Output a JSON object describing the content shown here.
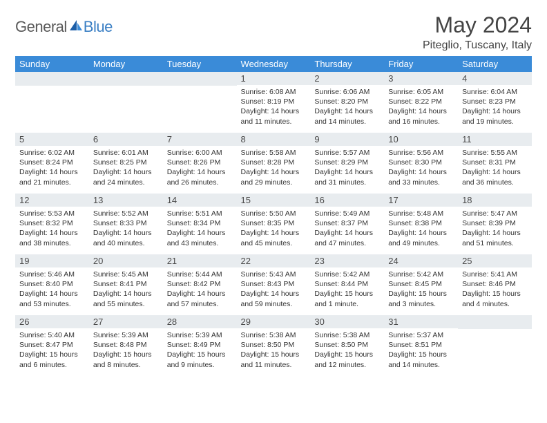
{
  "logo": {
    "text_general": "General",
    "text_blue": "Blue"
  },
  "header": {
    "month_title": "May 2024",
    "location": "Piteglio, Tuscany, Italy"
  },
  "styling": {
    "header_bg": "#3a8bd8",
    "header_fg": "#ffffff",
    "daynum_bg": "#e8ecef",
    "daynum_fg": "#4a4a4a",
    "body_fg": "#333333",
    "page_bg": "#ffffff",
    "font_family": "Arial, Helvetica, sans-serif",
    "daynum_fontsize": 13,
    "body_fontsize": 10.5,
    "header_fontsize": 13,
    "title_fontsize": 32,
    "location_fontsize": 16,
    "logo_general_color": "#5a5a5a",
    "logo_blue_color": "#3a7fc4"
  },
  "columns": [
    "Sunday",
    "Monday",
    "Tuesday",
    "Wednesday",
    "Thursday",
    "Friday",
    "Saturday"
  ],
  "weeks": [
    [
      {
        "empty": true
      },
      {
        "empty": true
      },
      {
        "empty": true
      },
      {
        "n": "1",
        "sunrise": "6:08 AM",
        "sunset": "8:19 PM",
        "daylight": "14 hours and 11 minutes."
      },
      {
        "n": "2",
        "sunrise": "6:06 AM",
        "sunset": "8:20 PM",
        "daylight": "14 hours and 14 minutes."
      },
      {
        "n": "3",
        "sunrise": "6:05 AM",
        "sunset": "8:22 PM",
        "daylight": "14 hours and 16 minutes."
      },
      {
        "n": "4",
        "sunrise": "6:04 AM",
        "sunset": "8:23 PM",
        "daylight": "14 hours and 19 minutes."
      }
    ],
    [
      {
        "n": "5",
        "sunrise": "6:02 AM",
        "sunset": "8:24 PM",
        "daylight": "14 hours and 21 minutes."
      },
      {
        "n": "6",
        "sunrise": "6:01 AM",
        "sunset": "8:25 PM",
        "daylight": "14 hours and 24 minutes."
      },
      {
        "n": "7",
        "sunrise": "6:00 AM",
        "sunset": "8:26 PM",
        "daylight": "14 hours and 26 minutes."
      },
      {
        "n": "8",
        "sunrise": "5:58 AM",
        "sunset": "8:28 PM",
        "daylight": "14 hours and 29 minutes."
      },
      {
        "n": "9",
        "sunrise": "5:57 AM",
        "sunset": "8:29 PM",
        "daylight": "14 hours and 31 minutes."
      },
      {
        "n": "10",
        "sunrise": "5:56 AM",
        "sunset": "8:30 PM",
        "daylight": "14 hours and 33 minutes."
      },
      {
        "n": "11",
        "sunrise": "5:55 AM",
        "sunset": "8:31 PM",
        "daylight": "14 hours and 36 minutes."
      }
    ],
    [
      {
        "n": "12",
        "sunrise": "5:53 AM",
        "sunset": "8:32 PM",
        "daylight": "14 hours and 38 minutes."
      },
      {
        "n": "13",
        "sunrise": "5:52 AM",
        "sunset": "8:33 PM",
        "daylight": "14 hours and 40 minutes."
      },
      {
        "n": "14",
        "sunrise": "5:51 AM",
        "sunset": "8:34 PM",
        "daylight": "14 hours and 43 minutes."
      },
      {
        "n": "15",
        "sunrise": "5:50 AM",
        "sunset": "8:35 PM",
        "daylight": "14 hours and 45 minutes."
      },
      {
        "n": "16",
        "sunrise": "5:49 AM",
        "sunset": "8:37 PM",
        "daylight": "14 hours and 47 minutes."
      },
      {
        "n": "17",
        "sunrise": "5:48 AM",
        "sunset": "8:38 PM",
        "daylight": "14 hours and 49 minutes."
      },
      {
        "n": "18",
        "sunrise": "5:47 AM",
        "sunset": "8:39 PM",
        "daylight": "14 hours and 51 minutes."
      }
    ],
    [
      {
        "n": "19",
        "sunrise": "5:46 AM",
        "sunset": "8:40 PM",
        "daylight": "14 hours and 53 minutes."
      },
      {
        "n": "20",
        "sunrise": "5:45 AM",
        "sunset": "8:41 PM",
        "daylight": "14 hours and 55 minutes."
      },
      {
        "n": "21",
        "sunrise": "5:44 AM",
        "sunset": "8:42 PM",
        "daylight": "14 hours and 57 minutes."
      },
      {
        "n": "22",
        "sunrise": "5:43 AM",
        "sunset": "8:43 PM",
        "daylight": "14 hours and 59 minutes."
      },
      {
        "n": "23",
        "sunrise": "5:42 AM",
        "sunset": "8:44 PM",
        "daylight": "15 hours and 1 minute."
      },
      {
        "n": "24",
        "sunrise": "5:42 AM",
        "sunset": "8:45 PM",
        "daylight": "15 hours and 3 minutes."
      },
      {
        "n": "25",
        "sunrise": "5:41 AM",
        "sunset": "8:46 PM",
        "daylight": "15 hours and 4 minutes."
      }
    ],
    [
      {
        "n": "26",
        "sunrise": "5:40 AM",
        "sunset": "8:47 PM",
        "daylight": "15 hours and 6 minutes."
      },
      {
        "n": "27",
        "sunrise": "5:39 AM",
        "sunset": "8:48 PM",
        "daylight": "15 hours and 8 minutes."
      },
      {
        "n": "28",
        "sunrise": "5:39 AM",
        "sunset": "8:49 PM",
        "daylight": "15 hours and 9 minutes."
      },
      {
        "n": "29",
        "sunrise": "5:38 AM",
        "sunset": "8:50 PM",
        "daylight": "15 hours and 11 minutes."
      },
      {
        "n": "30",
        "sunrise": "5:38 AM",
        "sunset": "8:50 PM",
        "daylight": "15 hours and 12 minutes."
      },
      {
        "n": "31",
        "sunrise": "5:37 AM",
        "sunset": "8:51 PM",
        "daylight": "15 hours and 14 minutes."
      },
      {
        "empty": true
      }
    ]
  ],
  "labels": {
    "sunrise": "Sunrise:",
    "sunset": "Sunset:",
    "daylight": "Daylight:"
  }
}
